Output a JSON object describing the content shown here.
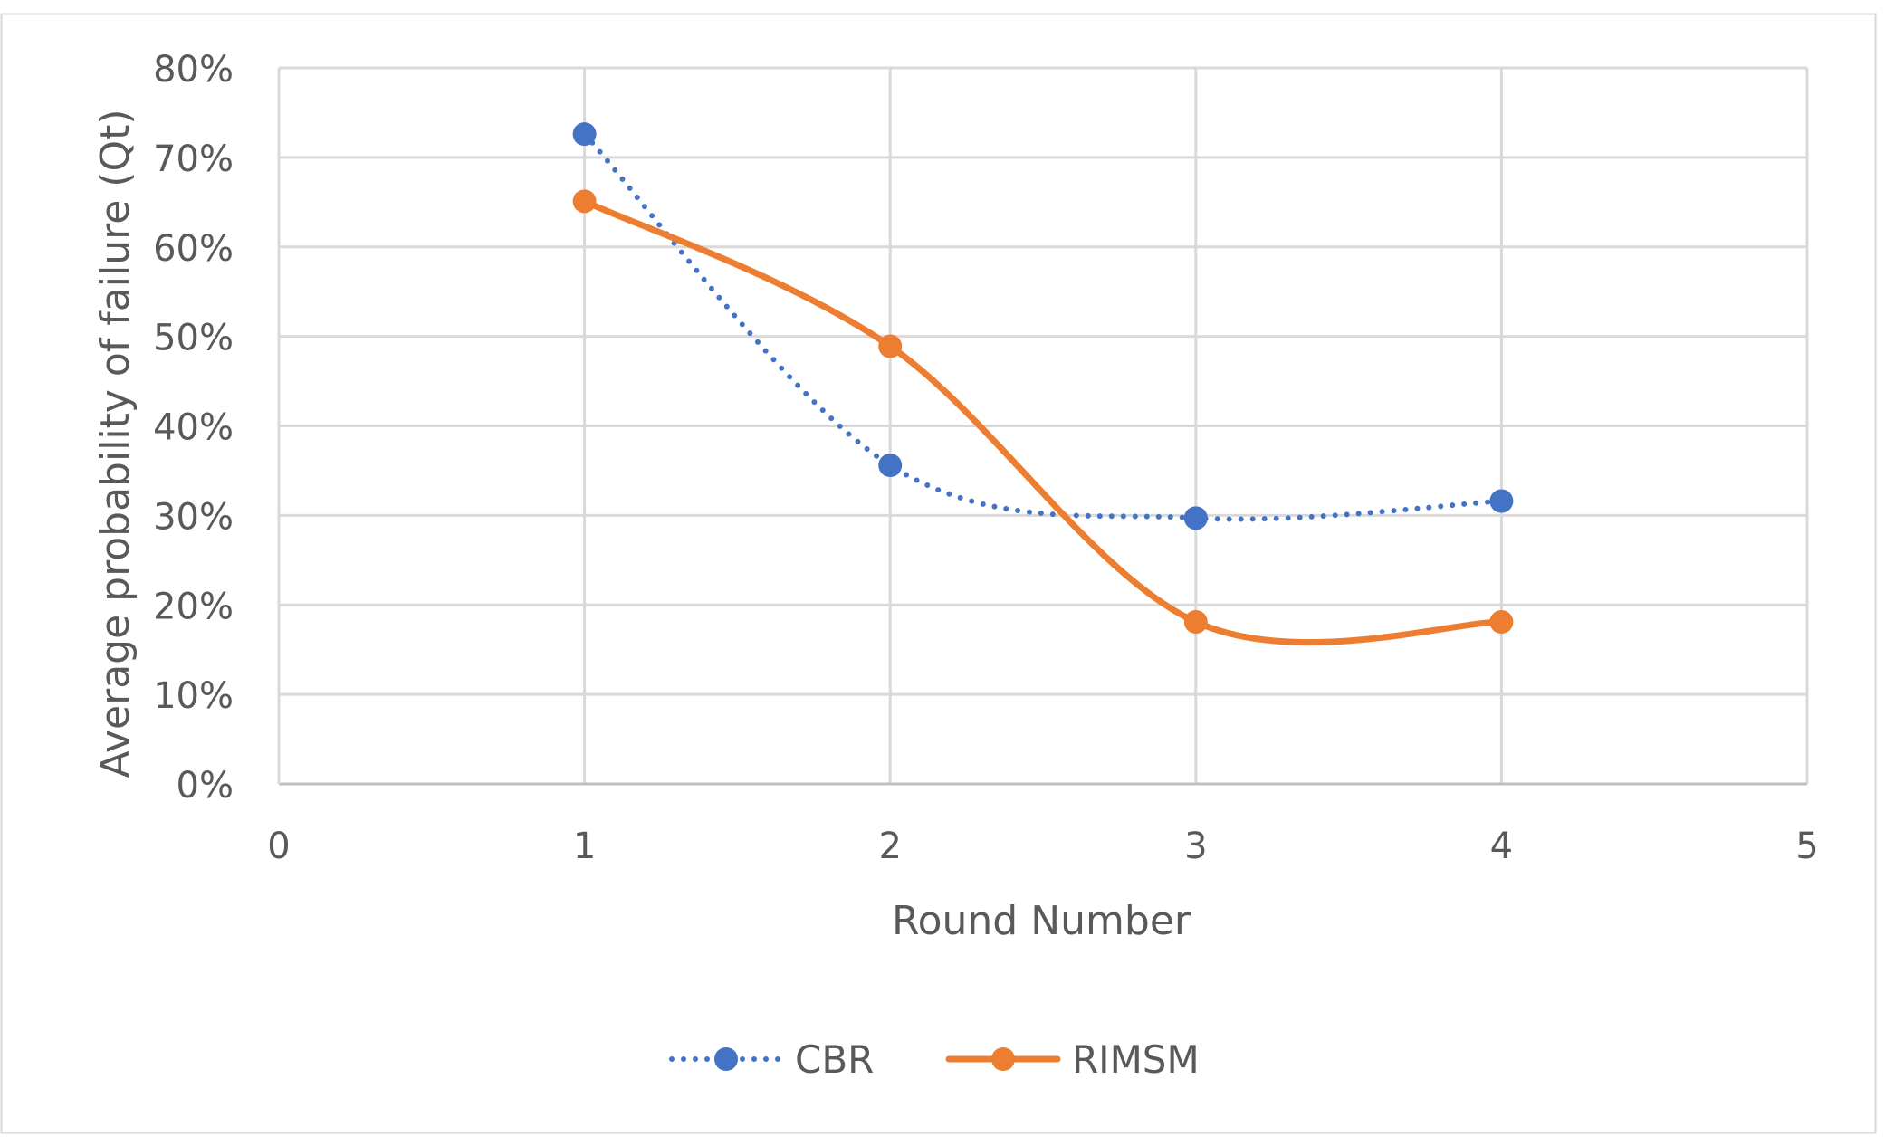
{
  "chart_data": {
    "type": "scatter",
    "title": "",
    "xlabel": "Round Number",
    "ylabel": "Average  probability of failure (Qt)",
    "x_ticks": [
      "0",
      "1",
      "2",
      "3",
      "4",
      "5"
    ],
    "y_ticks": [
      "0%",
      "10%",
      "20%",
      "30%",
      "40%",
      "50%",
      "60%",
      "70%",
      "80%"
    ],
    "xlim": [
      0,
      5
    ],
    "ylim": [
      0,
      0.8
    ],
    "grid": true,
    "legend_position": "bottom",
    "smooth_lines": true,
    "series": [
      {
        "name": "CBR",
        "color": "#4472C4",
        "line_style": "dotted",
        "marker": "circle",
        "points": [
          {
            "x": 1,
            "y": 0.726
          },
          {
            "x": 2,
            "y": 0.356
          },
          {
            "x": 3,
            "y": 0.297
          },
          {
            "x": 4,
            "y": 0.316
          }
        ]
      },
      {
        "name": "RIMSM",
        "color": "#ED7D31",
        "line_style": "solid",
        "marker": "circle",
        "points": [
          {
            "x": 1,
            "y": 0.651
          },
          {
            "x": 2,
            "y": 0.489
          },
          {
            "x": 3,
            "y": 0.181
          },
          {
            "x": 4,
            "y": 0.181
          }
        ]
      }
    ]
  }
}
